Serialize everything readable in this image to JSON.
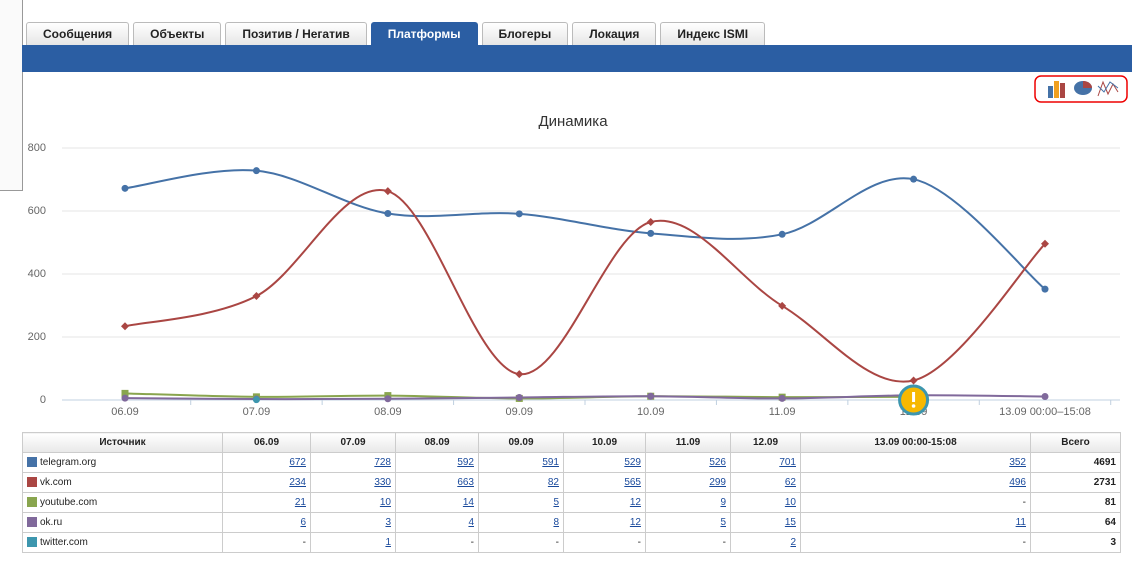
{
  "tabs": [
    "Сообщения",
    "Объекты",
    "Позитив / Негатив",
    "Платформы",
    "Блогеры",
    "Локация",
    "Индекс ISMI"
  ],
  "active_tab": 3,
  "chart_data": {
    "type": "line",
    "title": "Динамика",
    "categories": [
      "06.09",
      "07.09",
      "08.09",
      "09.09",
      "10.09",
      "11.09",
      "12.09",
      "13.09 00:00–15:08"
    ],
    "series": [
      {
        "name": "telegram.org",
        "color": "#4572a7",
        "values": [
          672,
          728,
          592,
          591,
          529,
          526,
          701,
          352
        ]
      },
      {
        "name": "vk.com",
        "color": "#aa4643",
        "values": [
          234,
          330,
          663,
          82,
          565,
          299,
          62,
          496
        ]
      },
      {
        "name": "youtube.com",
        "color": "#89a54e",
        "values": [
          21,
          10,
          14,
          5,
          12,
          9,
          10,
          null
        ]
      },
      {
        "name": "ok.ru",
        "color": "#80699b",
        "values": [
          6,
          3,
          4,
          8,
          12,
          5,
          15,
          11
        ]
      },
      {
        "name": "twitter.com",
        "color": "#3d96ae",
        "values": [
          null,
          1,
          null,
          null,
          null,
          null,
          2,
          null
        ]
      }
    ],
    "ylim": [
      0,
      800
    ],
    "yticks": [
      0,
      200,
      400,
      600,
      800
    ],
    "grid": true
  },
  "table": {
    "header": [
      "Источник",
      "06.09",
      "07.09",
      "08.09",
      "09.09",
      "10.09",
      "11.09",
      "12.09",
      "13.09 00:00-15:08",
      "Всего"
    ],
    "rows": [
      {
        "name": "telegram.org",
        "cells": [
          672,
          728,
          592,
          591,
          529,
          526,
          701,
          352
        ],
        "total": 4691
      },
      {
        "name": "vk.com",
        "cells": [
          234,
          330,
          663,
          82,
          565,
          299,
          62,
          496
        ],
        "total": 2731
      },
      {
        "name": "youtube.com",
        "cells": [
          21,
          10,
          14,
          5,
          12,
          9,
          10,
          "-"
        ],
        "total": 81
      },
      {
        "name": "ok.ru",
        "cells": [
          6,
          3,
          4,
          8,
          12,
          5,
          15,
          11
        ],
        "total": 64
      },
      {
        "name": "twitter.com",
        "cells": [
          "-",
          1,
          "-",
          "-",
          "-",
          "-",
          2,
          "-"
        ],
        "total": 3
      }
    ]
  }
}
